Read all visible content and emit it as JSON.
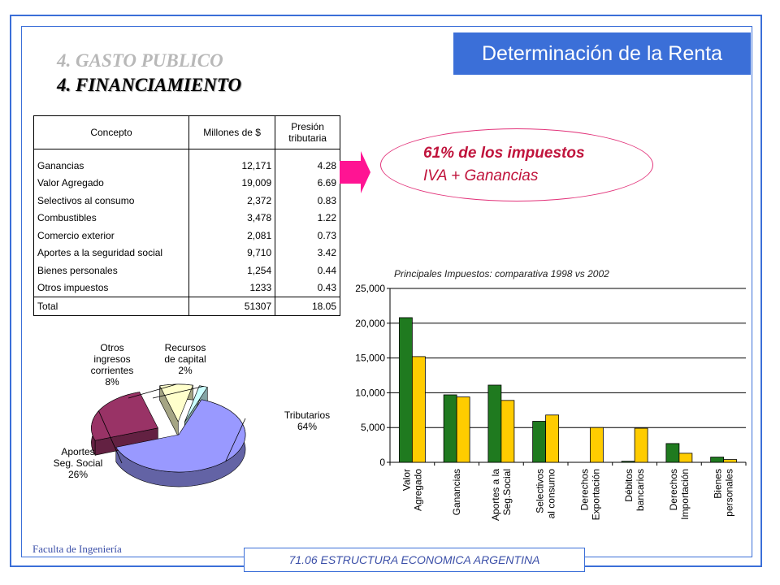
{
  "title": "Determinación de la Renta",
  "heading1": "4. GASTO PUBLICO",
  "heading2": "4. FINANCIAMIENTO",
  "table": {
    "headers": [
      "Concepto",
      "Millones de $",
      "Presión",
      "tributaria"
    ],
    "rows": [
      {
        "concepto": "Ganancias",
        "millones": "12,171",
        "presion": "4.28"
      },
      {
        "concepto": "Valor Agregado",
        "millones": "19,009",
        "presion": "6.69"
      },
      {
        "concepto": "Selectivos al consumo",
        "millones": "2,372",
        "presion": "0.83"
      },
      {
        "concepto": "Combustibles",
        "millones": "3,478",
        "presion": "1.22"
      },
      {
        "concepto": "Comercio exterior",
        "millones": "2,081",
        "presion": "0.73"
      },
      {
        "concepto": "Aportes a la seguridad social",
        "millones": "9,710",
        "presion": "3.42"
      },
      {
        "concepto": "Bienes personales",
        "millones": "1,254",
        "presion": "0.44"
      },
      {
        "concepto": "Otros impuestos",
        "millones": "1233",
        "presion": "0.43"
      }
    ],
    "total": {
      "concepto": "Total",
      "millones": "51307",
      "presion": "18.05"
    }
  },
  "callout": {
    "line1": "61% de los impuestos",
    "line2": "IVA + Ganancias"
  },
  "colors": {
    "accent": "#3b6fd8",
    "callout": "#c0143c",
    "series1998": "#1f7a1f",
    "series2002": "#ffcc00"
  },
  "chart_data": [
    {
      "type": "bar",
      "title": "Principales Impuestos: comparativa 1998 vs 2002",
      "categories": [
        [
          "Valor",
          "Agregado"
        ],
        [
          "Ganancias"
        ],
        [
          "Aportes a la",
          "Seg.Social"
        ],
        [
          "Selectivos",
          "al consumo"
        ],
        [
          "Derechos",
          "Exportación"
        ],
        [
          "Débitos",
          "bancarios"
        ],
        [
          "Derechos",
          "Importación"
        ],
        [
          "Bienes",
          "personales"
        ]
      ],
      "series": [
        {
          "values": [
            20800,
            9700,
            11100,
            5900,
            0,
            150,
            2700,
            750
          ]
        },
        {
          "values": [
            15200,
            9400,
            8900,
            6800,
            5000,
            4900,
            1300,
            400
          ]
        }
      ],
      "yticks": [
        "0",
        "5,000",
        "10,000",
        "15,000",
        "20,000",
        "25,000"
      ],
      "ylim": [
        0,
        25000
      ],
      "grid": true
    },
    {
      "type": "pie",
      "slices": [
        {
          "label": [
            "Tributarios",
            "64%"
          ],
          "value": 64,
          "color": "#9999ff"
        },
        {
          "label": [
            "Aportes",
            "Seg. Social",
            "26%"
          ],
          "value": 26,
          "color": "#993366"
        },
        {
          "label": [
            "Otros",
            "ingresos",
            "corrientes",
            "8%"
          ],
          "value": 8,
          "color": "#ffffcc"
        },
        {
          "label": [
            "Recursos",
            "de capital",
            "2%"
          ],
          "value": 2,
          "color": "#ccffff"
        }
      ]
    }
  ],
  "footer": {
    "left": "Faculta de Ingeniería",
    "center": "71.06 ESTRUCTURA ECONOMICA ARGENTINA"
  }
}
